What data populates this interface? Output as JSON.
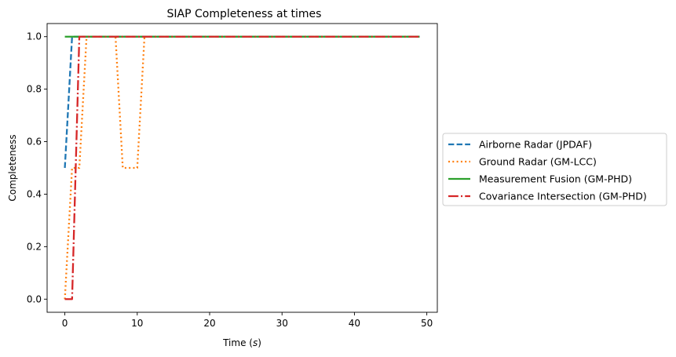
{
  "chart_data": {
    "type": "line",
    "title": "SIAP Completeness at times",
    "xlabel": "Time (s)",
    "xlabel_parts": {
      "prefix": "Time (",
      "var": "s",
      "suffix": ")"
    },
    "ylabel": "Completeness",
    "xlim": [
      -2.45,
      51.45
    ],
    "ylim": [
      -0.05,
      1.05
    ],
    "xticks": [
      0,
      10,
      20,
      30,
      40,
      50
    ],
    "xtick_labels": [
      "0",
      "10",
      "20",
      "30",
      "40",
      "50"
    ],
    "yticks": [
      0.0,
      0.2,
      0.4,
      0.6,
      0.8,
      1.0
    ],
    "ytick_labels": [
      "0.0",
      "0.2",
      "0.4",
      "0.6",
      "0.8",
      "1.0"
    ],
    "grid": false,
    "legend_position": "right, outside plot",
    "series": [
      {
        "name": "Airborne Radar (JPDAF)",
        "color": "#1f77b4",
        "linestyle": "dashed",
        "x": [
          0,
          1,
          2,
          3,
          4,
          5,
          6,
          7,
          8,
          9,
          10,
          11,
          12,
          13,
          14,
          15,
          16,
          17,
          18,
          19,
          20,
          21,
          22,
          23,
          24,
          25,
          26,
          27,
          28,
          29,
          30,
          31,
          32,
          33,
          34,
          35,
          36,
          37,
          38,
          39,
          40,
          41,
          42,
          43,
          44,
          45,
          46,
          47,
          48,
          49
        ],
        "y": [
          0.5,
          1,
          1,
          1,
          1,
          1,
          1,
          1,
          1,
          1,
          1,
          1,
          1,
          1,
          1,
          1,
          1,
          1,
          1,
          1,
          1,
          1,
          1,
          1,
          1,
          1,
          1,
          1,
          1,
          1,
          1,
          1,
          1,
          1,
          1,
          1,
          1,
          1,
          1,
          1,
          1,
          1,
          1,
          1,
          1,
          1,
          1,
          1,
          1,
          1
        ]
      },
      {
        "name": "Ground Radar (GM-LCC)",
        "color": "#ff7f0e",
        "linestyle": "dotted",
        "x": [
          0,
          1,
          2,
          3,
          4,
          5,
          6,
          7,
          8,
          9,
          10,
          11,
          12,
          13,
          14,
          15,
          16,
          17,
          18,
          19,
          20,
          21,
          22,
          23,
          24,
          25,
          26,
          27,
          28,
          29,
          30,
          31,
          32,
          33,
          34,
          35,
          36,
          37,
          38,
          39,
          40,
          41,
          42,
          43,
          44,
          45,
          46,
          47,
          48,
          49
        ],
        "y": [
          0,
          0.5,
          0.5,
          1,
          1,
          1,
          1,
          1,
          0.5,
          0.5,
          0.5,
          1,
          1,
          1,
          1,
          1,
          1,
          1,
          1,
          1,
          1,
          1,
          1,
          1,
          1,
          1,
          1,
          1,
          1,
          1,
          1,
          1,
          1,
          1,
          1,
          1,
          1,
          1,
          1,
          1,
          1,
          1,
          1,
          1,
          1,
          1,
          1,
          1,
          1,
          1
        ]
      },
      {
        "name": "Measurement Fusion (GM-PHD)",
        "color": "#2ca02c",
        "linestyle": "solid",
        "x": [
          0,
          1,
          2,
          3,
          4,
          5,
          6,
          7,
          8,
          9,
          10,
          11,
          12,
          13,
          14,
          15,
          16,
          17,
          18,
          19,
          20,
          21,
          22,
          23,
          24,
          25,
          26,
          27,
          28,
          29,
          30,
          31,
          32,
          33,
          34,
          35,
          36,
          37,
          38,
          39,
          40,
          41,
          42,
          43,
          44,
          45,
          46,
          47,
          48,
          49
        ],
        "y": [
          1,
          1,
          1,
          1,
          1,
          1,
          1,
          1,
          1,
          1,
          1,
          1,
          1,
          1,
          1,
          1,
          1,
          1,
          1,
          1,
          1,
          1,
          1,
          1,
          1,
          1,
          1,
          1,
          1,
          1,
          1,
          1,
          1,
          1,
          1,
          1,
          1,
          1,
          1,
          1,
          1,
          1,
          1,
          1,
          1,
          1,
          1,
          1,
          1,
          1
        ]
      },
      {
        "name": "Covariance Intersection (GM-PHD)",
        "color": "#d62728",
        "linestyle": "dashdot",
        "x": [
          0,
          1,
          2,
          3,
          4,
          5,
          6,
          7,
          8,
          9,
          10,
          11,
          12,
          13,
          14,
          15,
          16,
          17,
          18,
          19,
          20,
          21,
          22,
          23,
          24,
          25,
          26,
          27,
          28,
          29,
          30,
          31,
          32,
          33,
          34,
          35,
          36,
          37,
          38,
          39,
          40,
          41,
          42,
          43,
          44,
          45,
          46,
          47,
          48,
          49
        ],
        "y": [
          0,
          0,
          1,
          1,
          1,
          1,
          1,
          1,
          1,
          1,
          1,
          1,
          1,
          1,
          1,
          1,
          1,
          1,
          1,
          1,
          1,
          1,
          1,
          1,
          1,
          1,
          1,
          1,
          1,
          1,
          1,
          1,
          1,
          1,
          1,
          1,
          1,
          1,
          1,
          1,
          1,
          1,
          1,
          1,
          1,
          1,
          1,
          1,
          1,
          1
        ]
      }
    ]
  }
}
